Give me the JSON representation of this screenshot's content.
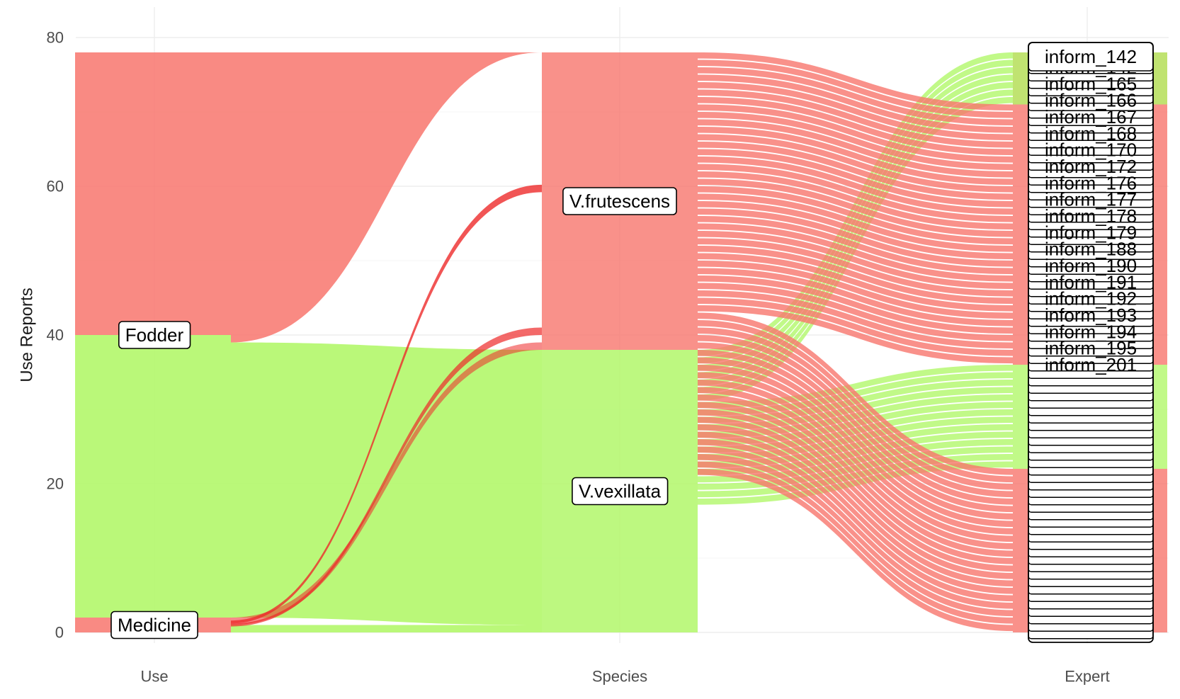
{
  "chart_data": {
    "type": "alluvial",
    "title": "",
    "xlabel": "",
    "ylabel": "Use Reports",
    "ylim": [
      0,
      80
    ],
    "y_ticks": [
      0,
      20,
      40,
      60,
      80
    ],
    "grid": true,
    "axes": [
      "Use",
      "Species",
      "Expert"
    ],
    "fill_colors": {
      "Fodder": "#f8766d",
      "Medicine": "#f8766d",
      "V.frutescens": "#f8766d",
      "V.vexillata": "#a3f56b"
    },
    "colors": {
      "red": "#f8766d",
      "green": "#b2f76a",
      "red_dark": "#ee2a2a"
    },
    "use_nodes": [
      {
        "name": "Fodder",
        "value": 76,
        "color": "mixed"
      },
      {
        "name": "Medicine",
        "value": 2
      }
    ],
    "species_nodes": [
      {
        "name": "V.frutescens",
        "value": 40
      },
      {
        "name": "V.vexillata",
        "value": 38
      }
    ],
    "flows_use_species": [
      {
        "use": "Medicine",
        "species": "V.vexillata",
        "value": 1
      },
      {
        "use": "Medicine",
        "species": "V.frutescens",
        "value": 1
      },
      {
        "use": "Fodder",
        "species": "V.vexillata",
        "value": 37
      },
      {
        "use": "Fodder",
        "species": "V.frutescens",
        "value": 39
      }
    ],
    "expert_top_label": "inform_142",
    "expert_labels": [
      "inform_142",
      "inform_165",
      "inform_166",
      "inform_167",
      "inform_168",
      "inform_170",
      "inform_172",
      "inform_176",
      "inform_177",
      "inform_178",
      "inform_179",
      "inform_188",
      "inform_190",
      "inform_191",
      "inform_192",
      "inform_193",
      "inform_194",
      "inform_195",
      "inform_201"
    ],
    "expert_count": 78
  }
}
